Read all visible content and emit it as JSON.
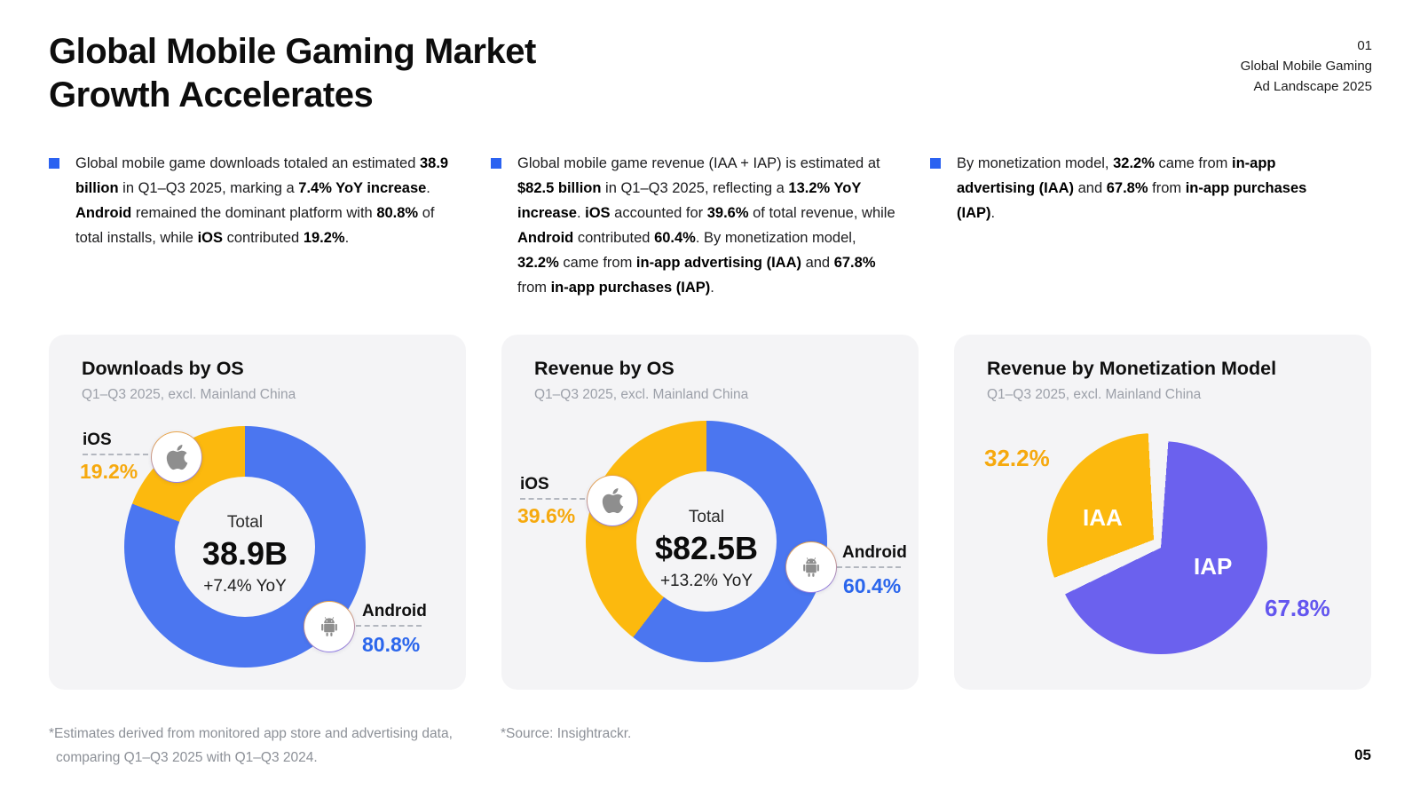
{
  "header": {
    "title_line1": "Global Mobile Gaming Market",
    "title_line2": "Growth Accelerates",
    "kicker_number": "01",
    "kicker_line1": "Global Mobile Gaming",
    "kicker_line2": "Ad Landscape 2025"
  },
  "bullets": [
    {
      "segments": [
        {
          "t": "Global mobile game downloads totaled an estimated ",
          "b": false
        },
        {
          "t": "38.9 billion",
          "b": true
        },
        {
          "t": " in Q1–Q3 2025, marking a ",
          "b": false
        },
        {
          "t": "7.4% YoY increase",
          "b": true
        },
        {
          "t": ". ",
          "b": false
        },
        {
          "t": "Android",
          "b": true
        },
        {
          "t": " remained the dominant platform with ",
          "b": false
        },
        {
          "t": "80.8%",
          "b": true
        },
        {
          "t": " of total installs, while ",
          "b": false
        },
        {
          "t": "iOS",
          "b": true
        },
        {
          "t": " contributed ",
          "b": false
        },
        {
          "t": "19.2%",
          "b": true
        },
        {
          "t": ".",
          "b": false
        }
      ]
    },
    {
      "segments": [
        {
          "t": "Global mobile game revenue (IAA + IAP) is estimated at ",
          "b": false
        },
        {
          "t": "$82.5 billion",
          "b": true
        },
        {
          "t": " in Q1–Q3 2025, reflecting a ",
          "b": false
        },
        {
          "t": "13.2% YoY increase",
          "b": true
        },
        {
          "t": ". ",
          "b": false
        },
        {
          "t": "iOS",
          "b": true
        },
        {
          "t": " accounted for ",
          "b": false
        },
        {
          "t": "39.6%",
          "b": true
        },
        {
          "t": " of total revenue, while ",
          "b": false
        },
        {
          "t": "Android",
          "b": true
        },
        {
          "t": " contributed ",
          "b": false
        },
        {
          "t": "60.4%",
          "b": true
        },
        {
          "t": ". By monetization model, ",
          "b": false
        },
        {
          "t": "32.2%",
          "b": true
        },
        {
          "t": " came from ",
          "b": false
        },
        {
          "t": "in-app advertising (IAA)",
          "b": true
        },
        {
          "t": " and ",
          "b": false
        },
        {
          "t": "67.8%",
          "b": true
        },
        {
          "t": " from ",
          "b": false
        },
        {
          "t": "in-app purchases (IAP)",
          "b": true
        },
        {
          "t": ".",
          "b": false
        }
      ]
    },
    {
      "segments": [
        {
          "t": "By monetization model, ",
          "b": false
        },
        {
          "t": "32.2%",
          "b": true
        },
        {
          "t": " came from ",
          "b": false
        },
        {
          "t": "in-app advertising (IAA)",
          "b": true
        },
        {
          "t": " and ",
          "b": false
        },
        {
          "t": "67.8%",
          "b": true
        },
        {
          "t": " from ",
          "b": false
        },
        {
          "t": "in-app purchases (IAP)",
          "b": true
        },
        {
          "t": ".",
          "b": false
        }
      ]
    }
  ],
  "cards": [
    {
      "title": "Downloads by OS",
      "subtitle": "Q1–Q3 2025, excl. Mainland China",
      "center": {
        "label": "Total",
        "value": "38.9B",
        "yoy": "+7.4% YoY"
      },
      "ios": {
        "label": "iOS",
        "value": "19.2%"
      },
      "android": {
        "label": "Android",
        "value": "80.8%"
      }
    },
    {
      "title": "Revenue by OS",
      "subtitle": "Q1–Q3 2025, excl. Mainland China",
      "center": {
        "label": "Total",
        "value": "$82.5B",
        "yoy": "+13.2% YoY"
      },
      "ios": {
        "label": "iOS",
        "value": "39.6%"
      },
      "android": {
        "label": "Android",
        "value": "60.4%"
      }
    },
    {
      "title": "Revenue by Monetization Model",
      "subtitle": "Q1–Q3 2025, excl. Mainland China",
      "iaa": {
        "label": "IAA",
        "value": "32.2%"
      },
      "iap": {
        "label": "IAP",
        "value": "67.8%"
      }
    }
  ],
  "chart_data": [
    {
      "type": "pie",
      "variant": "donut",
      "title": "Downloads by OS",
      "subtitle": "Q1–Q3 2025, excl. Mainland China",
      "labels": [
        "Android",
        "iOS"
      ],
      "values": [
        80.8,
        19.2
      ],
      "colors": [
        "#4B76F0",
        "#FCB90E"
      ],
      "center": {
        "label": "Total",
        "value": "38.9B",
        "sub": "+7.4% YoY"
      }
    },
    {
      "type": "pie",
      "variant": "donut",
      "title": "Revenue by OS",
      "subtitle": "Q1–Q3 2025, excl. Mainland China",
      "labels": [
        "Android",
        "iOS"
      ],
      "values": [
        60.4,
        39.6
      ],
      "colors": [
        "#4B76F0",
        "#FCB90E"
      ],
      "center": {
        "label": "Total",
        "value": "$82.5B",
        "sub": "+13.2% YoY"
      }
    },
    {
      "type": "pie",
      "variant": "pie-exploded",
      "title": "Revenue by Monetization Model",
      "subtitle": "Q1–Q3 2025, excl. Mainland China",
      "labels": [
        "IAP",
        "IAA"
      ],
      "values": [
        67.8,
        32.2
      ],
      "colors": [
        "#6B61EE",
        "#FCB90E"
      ]
    }
  ],
  "footer": {
    "note_line1": "*Estimates derived from monitored app store and advertising data,",
    "note_line2": "comparing Q1–Q3 2025 with Q1–Q3 2024.",
    "source": "*Source: Insightrackr.",
    "page_number": "05"
  },
  "colors": {
    "blue": "#4B76F0",
    "yellow": "#FCB90E",
    "purple": "#6B61EE",
    "blue_text": "#2B66EC",
    "yellow_text": "#F6A90E",
    "purple_text": "#6356EF",
    "card_bg": "#F4F4F6",
    "bullet_marker": "#2B62F1"
  }
}
